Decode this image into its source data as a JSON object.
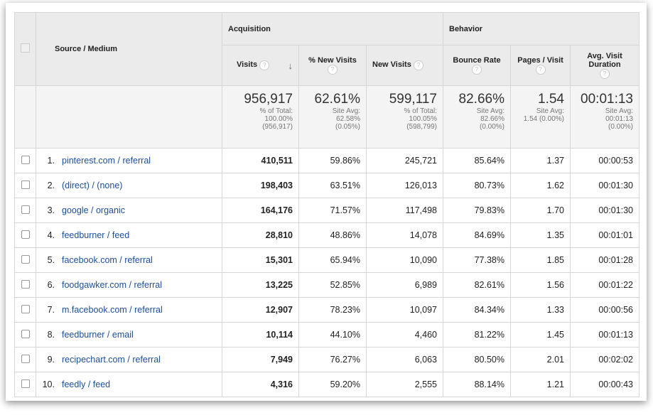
{
  "header": {
    "source_medium": "Source / Medium",
    "acquisition": "Acquisition",
    "behavior": "Behavior",
    "columns": [
      "Visits",
      "% New Visits",
      "New Visits",
      "Bounce Rate",
      "Pages / Visit",
      "Avg. Visit Duration"
    ],
    "sort_icon": "arrow-down-icon",
    "help_icon": "?"
  },
  "totals": [
    {
      "value": "956,917",
      "l1": "% of Total:",
      "l2": "100.00%",
      "l3": "(956,917)"
    },
    {
      "value": "62.61%",
      "l1": "Site Avg:",
      "l2": "62.58%",
      "l3": "(0.05%)"
    },
    {
      "value": "599,117",
      "l1": "% of Total:",
      "l2": "100.05%",
      "l3": "(598,799)"
    },
    {
      "value": "82.66%",
      "l1": "Site Avg:",
      "l2": "82.66%",
      "l3": "(0.00%)"
    },
    {
      "value": "1.54",
      "l1": "Site Avg:",
      "l2": "1.54 (0.00%)",
      "l3": ""
    },
    {
      "value": "00:01:13",
      "l1": "Site Avg:",
      "l2": "00:01:13",
      "l3": "(0.00%)"
    }
  ],
  "rows": [
    [
      "1.",
      "pinterest.com / referral",
      "410,511",
      "59.86%",
      "245,721",
      "85.64%",
      "1.37",
      "00:00:53"
    ],
    [
      "2.",
      "(direct) / (none)",
      "198,403",
      "63.51%",
      "126,013",
      "80.73%",
      "1.62",
      "00:01:30"
    ],
    [
      "3.",
      "google / organic",
      "164,176",
      "71.57%",
      "117,498",
      "79.83%",
      "1.70",
      "00:01:30"
    ],
    [
      "4.",
      "feedburner / feed",
      "28,810",
      "48.86%",
      "14,078",
      "84.69%",
      "1.35",
      "00:01:01"
    ],
    [
      "5.",
      "facebook.com / referral",
      "15,301",
      "65.94%",
      "10,090",
      "77.38%",
      "1.85",
      "00:01:28"
    ],
    [
      "6.",
      "foodgawker.com / referral",
      "13,225",
      "52.85%",
      "6,989",
      "82.61%",
      "1.56",
      "00:01:22"
    ],
    [
      "7.",
      "m.facebook.com / referral",
      "12,907",
      "78.23%",
      "10,097",
      "84.34%",
      "1.33",
      "00:00:56"
    ],
    [
      "8.",
      "feedburner / email",
      "10,114",
      "44.10%",
      "4,460",
      "81.22%",
      "1.45",
      "00:01:13"
    ],
    [
      "9.",
      "recipechart.com / referral",
      "7,949",
      "76.27%",
      "6,063",
      "80.50%",
      "2.01",
      "00:02:02"
    ],
    [
      "10.",
      "feedly / feed",
      "4,316",
      "59.20%",
      "2,555",
      "88.14%",
      "1.21",
      "00:00:43"
    ]
  ]
}
